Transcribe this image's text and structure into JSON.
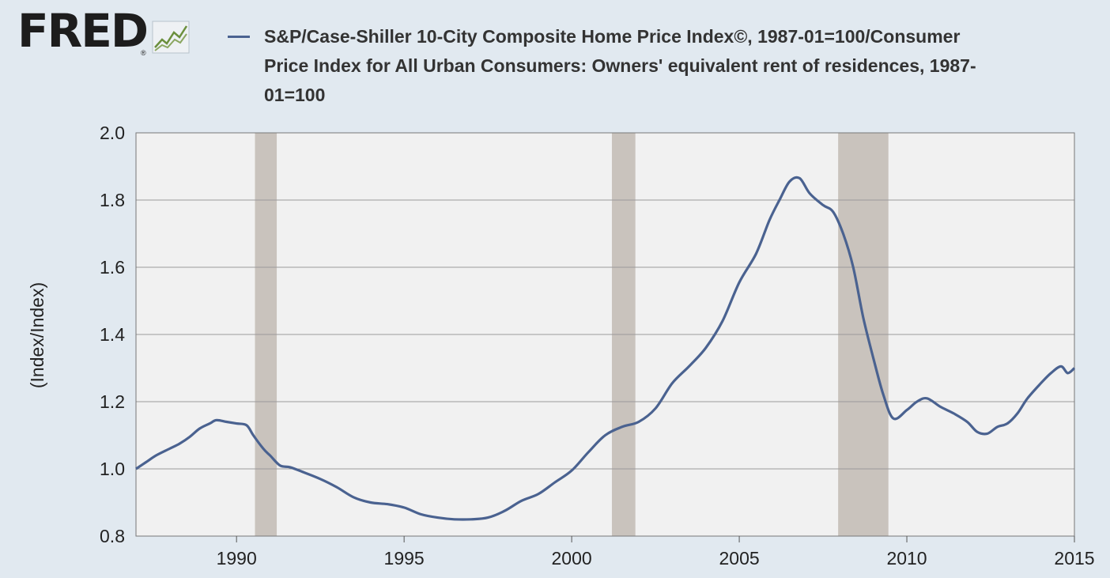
{
  "logo": {
    "name": "FRED",
    "registered": "®",
    "icon": "chart-trend-icon"
  },
  "chart_data": {
    "type": "line",
    "title": "S&P/Case-Shiller 10-City Composite Home Price Index©, 1987-01=100/Consumer Price Index for All Urban Consumers: Owners' equivalent rent of residences, 1987-01=100",
    "xlabel": "",
    "ylabel": "(Index/Index)",
    "xlim": [
      1987.0,
      2015.0
    ],
    "ylim": [
      0.8,
      2.0
    ],
    "x_ticks": [
      1990,
      1995,
      2000,
      2005,
      2010,
      2015
    ],
    "y_ticks": [
      "0.8",
      "1.0",
      "1.2",
      "1.4",
      "1.6",
      "1.8",
      "2.0"
    ],
    "grid": true,
    "legend_position": "top",
    "series": [
      {
        "name": "S&P/Case-Shiller 10-City Composite Home Price Index©, 1987-01=100/Consumer Price Index for All Urban Consumers: Owners' equivalent rent of residences, 1987-01=100",
        "color": "#4a6290",
        "x": [
          1987.0,
          1987.3,
          1987.6,
          1988.0,
          1988.3,
          1988.6,
          1988.9,
          1989.2,
          1989.4,
          1989.7,
          1990.0,
          1990.3,
          1990.5,
          1990.8,
          1991.0,
          1991.3,
          1991.6,
          1992.0,
          1992.5,
          1993.0,
          1993.5,
          1994.0,
          1994.5,
          1995.0,
          1995.5,
          1996.0,
          1996.5,
          1997.0,
          1997.5,
          1998.0,
          1998.5,
          1999.0,
          1999.5,
          2000.0,
          2000.5,
          2001.0,
          2001.5,
          2002.0,
          2002.5,
          2003.0,
          2003.5,
          2004.0,
          2004.5,
          2005.0,
          2005.5,
          2005.9,
          2006.2,
          2006.5,
          2006.8,
          2007.1,
          2007.5,
          2007.8,
          2008.1,
          2008.4,
          2008.7,
          2009.0,
          2009.3,
          2009.6,
          2010.0,
          2010.3,
          2010.6,
          2011.0,
          2011.4,
          2011.8,
          2012.1,
          2012.4,
          2012.7,
          2013.0,
          2013.3,
          2013.6,
          2014.0,
          2014.3,
          2014.6,
          2014.8,
          2015.0
        ],
        "values": [
          1.0,
          1.02,
          1.04,
          1.06,
          1.075,
          1.095,
          1.12,
          1.135,
          1.145,
          1.14,
          1.135,
          1.13,
          1.1,
          1.06,
          1.04,
          1.01,
          1.005,
          0.99,
          0.97,
          0.945,
          0.915,
          0.9,
          0.895,
          0.885,
          0.865,
          0.855,
          0.85,
          0.85,
          0.855,
          0.875,
          0.905,
          0.925,
          0.96,
          0.995,
          1.05,
          1.1,
          1.125,
          1.14,
          1.18,
          1.255,
          1.305,
          1.36,
          1.44,
          1.555,
          1.64,
          1.74,
          1.8,
          1.855,
          1.865,
          1.82,
          1.785,
          1.765,
          1.7,
          1.6,
          1.45,
          1.33,
          1.22,
          1.15,
          1.175,
          1.2,
          1.21,
          1.185,
          1.165,
          1.14,
          1.11,
          1.105,
          1.125,
          1.135,
          1.165,
          1.21,
          1.255,
          1.285,
          1.305,
          1.285,
          1.3
        ]
      }
    ],
    "recessions": [
      [
        1990.55,
        1991.2
      ],
      [
        2001.2,
        2001.9
      ],
      [
        2007.95,
        2009.45
      ]
    ]
  },
  "colors": {
    "background": "#e1e9f0",
    "plot_bg": "#f1f1f1",
    "recession": "#c9c3bd",
    "grid": "#9a9a9a",
    "line": "#4a6290"
  }
}
